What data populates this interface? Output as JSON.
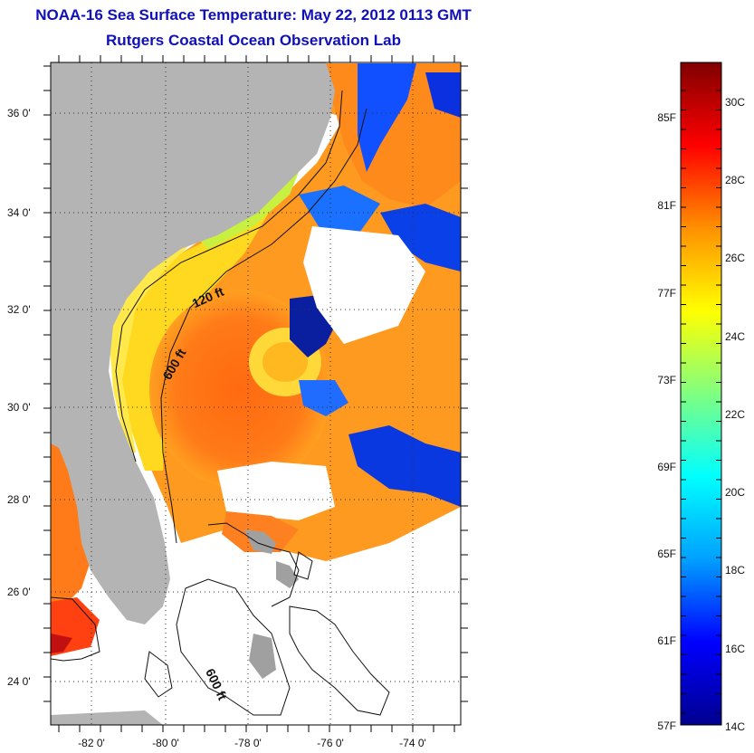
{
  "header": {
    "title": "NOAA-16 Sea Surface Temperature:  May 22, 2012 0113 GMT",
    "subtitle": "Rutgers Coastal Ocean Observation Lab"
  },
  "map": {
    "lat_labels": [
      "36 0'",
      "34 0'",
      "32 0'",
      "30 0'",
      "28 0'",
      "26 0'",
      "24 0'"
    ],
    "lon_labels": [
      "-82 0'",
      "-80 0'",
      "-78 0'",
      "-76 0'",
      "-74 0'"
    ],
    "contour_labels": [
      "120 ft",
      "600 ft",
      "600 ft"
    ],
    "land_color": "#b4b4b4",
    "nodata_color": "#ffffff"
  },
  "colorbar": {
    "fahrenheit_labels": [
      "85F",
      "81F",
      "77F",
      "73F",
      "69F",
      "65F",
      "61F",
      "57F"
    ],
    "celsius_labels": [
      "30C",
      "28C",
      "26C",
      "24C",
      "22C",
      "20C",
      "18C",
      "16C",
      "14C"
    ],
    "colormap": [
      "#00008f",
      "#0000ff",
      "#00a0ff",
      "#00ffff",
      "#80ff80",
      "#ffff00",
      "#ff9000",
      "#ff0000",
      "#800000"
    ]
  }
}
